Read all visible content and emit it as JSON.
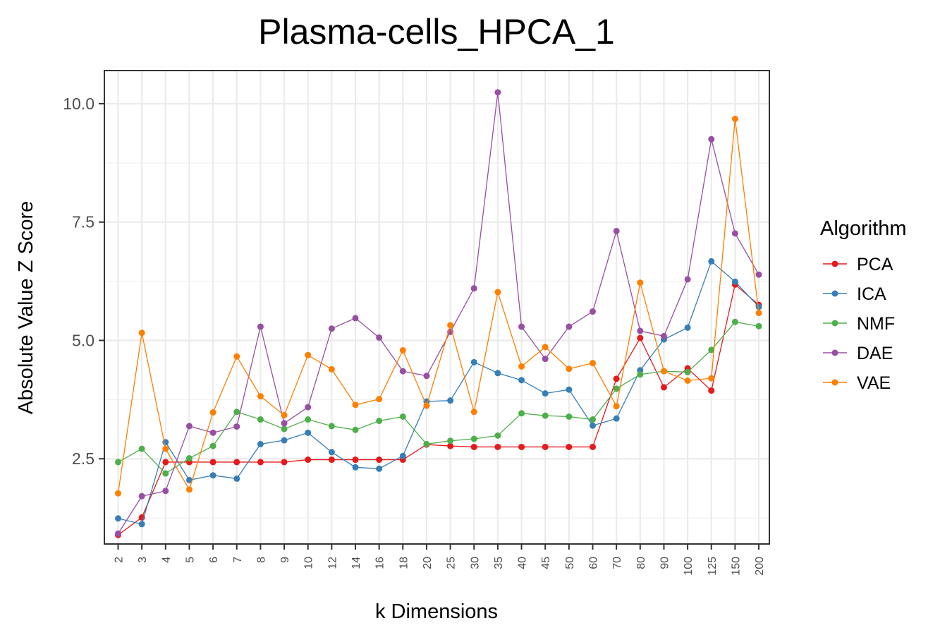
{
  "chart_data": {
    "type": "line",
    "title": "Plasma-cells_HPCA_1",
    "xlabel": "k Dimensions",
    "ylabel": "Absolute Value Z Score",
    "categories": [
      "2",
      "3",
      "4",
      "5",
      "6",
      "7",
      "8",
      "9",
      "10",
      "12",
      "14",
      "16",
      "18",
      "20",
      "25",
      "30",
      "35",
      "40",
      "45",
      "50",
      "60",
      "70",
      "80",
      "90",
      "100",
      "125",
      "150",
      "200"
    ],
    "ylim": [
      0.7,
      10.7
    ],
    "yticks": [
      2.5,
      5.0,
      7.5,
      10.0
    ],
    "ytick_labels": [
      "2.5",
      "5.0",
      "7.5",
      "10.0"
    ],
    "grid": true,
    "legend": {
      "title": "Algorithm",
      "position": "right"
    },
    "series": [
      {
        "name": "PCA",
        "color": "#E41A1C",
        "values": [
          0.89,
          1.26,
          2.43,
          2.43,
          2.43,
          2.43,
          2.43,
          2.43,
          2.48,
          2.48,
          2.48,
          2.48,
          2.48,
          2.8,
          2.77,
          2.75,
          2.75,
          2.75,
          2.75,
          2.75,
          2.75,
          4.19,
          5.05,
          4.01,
          4.41,
          3.94,
          6.18,
          5.75
        ]
      },
      {
        "name": "ICA",
        "color": "#377EB8",
        "values": [
          1.24,
          1.12,
          2.85,
          2.05,
          2.15,
          2.08,
          2.81,
          2.89,
          3.05,
          2.64,
          2.32,
          2.29,
          2.56,
          3.71,
          3.73,
          4.54,
          4.31,
          4.16,
          3.88,
          3.96,
          3.2,
          3.35,
          4.37,
          5.02,
          5.27,
          6.67,
          6.24,
          5.71
        ]
      },
      {
        "name": "NMF",
        "color": "#4DAF4A",
        "values": [
          2.43,
          2.71,
          2.19,
          2.51,
          2.77,
          3.49,
          3.33,
          3.13,
          3.33,
          3.19,
          3.11,
          3.3,
          3.39,
          2.81,
          2.88,
          2.92,
          2.99,
          3.46,
          3.41,
          3.39,
          3.33,
          3.98,
          4.28,
          4.35,
          4.33,
          4.8,
          5.39,
          5.3
        ]
      },
      {
        "name": "DAE",
        "color": "#984EA3",
        "values": [
          0.92,
          1.71,
          1.82,
          3.19,
          3.05,
          3.18,
          5.29,
          3.25,
          3.59,
          5.25,
          5.47,
          5.06,
          4.35,
          4.25,
          5.18,
          6.1,
          10.24,
          5.29,
          4.61,
          5.29,
          5.61,
          7.31,
          5.2,
          5.09,
          6.29,
          9.25,
          7.26,
          6.39
        ]
      },
      {
        "name": "VAE",
        "color": "#FF7F00",
        "values": [
          1.77,
          5.16,
          2.71,
          1.85,
          3.48,
          4.66,
          3.82,
          3.42,
          4.69,
          4.39,
          3.64,
          3.76,
          4.79,
          3.62,
          5.32,
          3.49,
          6.02,
          4.45,
          4.86,
          4.4,
          4.52,
          3.61,
          6.22,
          4.35,
          4.15,
          4.2,
          9.68,
          5.58
        ]
      }
    ]
  }
}
